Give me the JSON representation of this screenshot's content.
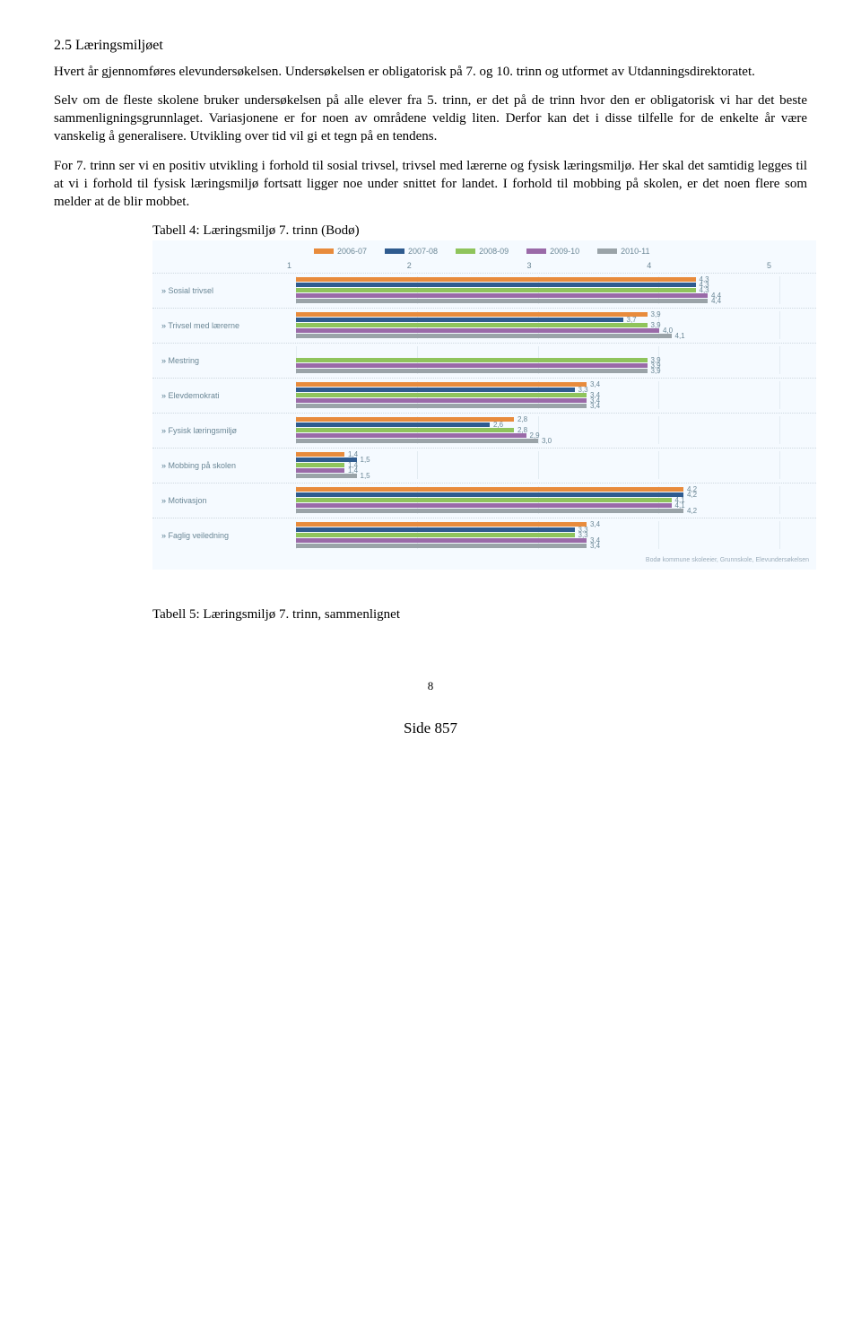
{
  "heading": "2.5  Læringsmiljøet",
  "para1": "Hvert år gjennomføres elevundersøkelsen. Undersøkelsen er obligatorisk på 7. og 10. trinn og utformet av Utdanningsdirektoratet.",
  "para2": "Selv om de fleste skolene bruker undersøkelsen på alle elever fra 5. trinn, er det på de trinn hvor den er obligatorisk vi har det beste sammenligningsgrunnlaget. Variasjonene er for noen av områdene veldig liten. Derfor kan det i disse tilfelle for de enkelte år være vanskelig å generalisere. Utvikling over tid vil gi et tegn på en tendens.",
  "para3": "For 7. trinn ser vi en positiv utvikling i forhold til sosial trivsel, trivsel med lærerne og fysisk læringsmiljø. Her skal det samtidig legges til at vi i forhold til fysisk læringsmiljø fortsatt ligger noe under snittet for landet. I forhold til mobbing på skolen, er det noen flere som melder at de blir mobbet.",
  "caption1": "Tabell 4: Læringsmiljø 7. trinn (Bodø)",
  "caption2": "Tabell 5: Læringsmiljø 7. trinn, sammenlignet",
  "footer_page": "8",
  "page_label": "Side 857",
  "chart": {
    "xmin": 1,
    "xmax": 5,
    "axis_ticks": [
      "1",
      "2",
      "3",
      "4",
      "5"
    ],
    "legend": [
      {
        "label": "2006-07",
        "color": "#e88b3c"
      },
      {
        "label": "2007-08",
        "color": "#2f5b8f"
      },
      {
        "label": "2008-09",
        "color": "#8fc45c"
      },
      {
        "label": "2009-10",
        "color": "#9a6aa8"
      },
      {
        "label": "2010-11",
        "color": "#9aa3a8"
      }
    ],
    "source_note": "Bodø kommune skoleeier, Grunnskole, Elevundersøkelsen",
    "metrics": [
      {
        "label": "Sosial trivsel",
        "values": [
          4.3,
          4.3,
          4.3,
          4.4,
          4.4
        ]
      },
      {
        "label": "Trivsel med lærerne",
        "values": [
          3.9,
          3.7,
          3.9,
          4.0,
          4.1
        ]
      },
      {
        "label": "Mestring",
        "values": [
          null,
          null,
          3.9,
          3.9,
          3.9
        ]
      },
      {
        "label": "Elevdemokrati",
        "values": [
          3.4,
          3.3,
          3.4,
          3.4,
          3.4
        ]
      },
      {
        "label": "Fysisk læringsmiljø",
        "values": [
          2.8,
          2.6,
          2.8,
          2.9,
          3.0
        ]
      },
      {
        "label": "Mobbing på skolen",
        "values": [
          1.4,
          1.5,
          1.4,
          1.4,
          1.5
        ]
      },
      {
        "label": "Motivasjon",
        "values": [
          4.2,
          4.2,
          4.1,
          4.1,
          4.2
        ]
      },
      {
        "label": "Faglig veiledning",
        "values": [
          3.4,
          3.3,
          3.3,
          3.4,
          3.4
        ]
      }
    ]
  }
}
